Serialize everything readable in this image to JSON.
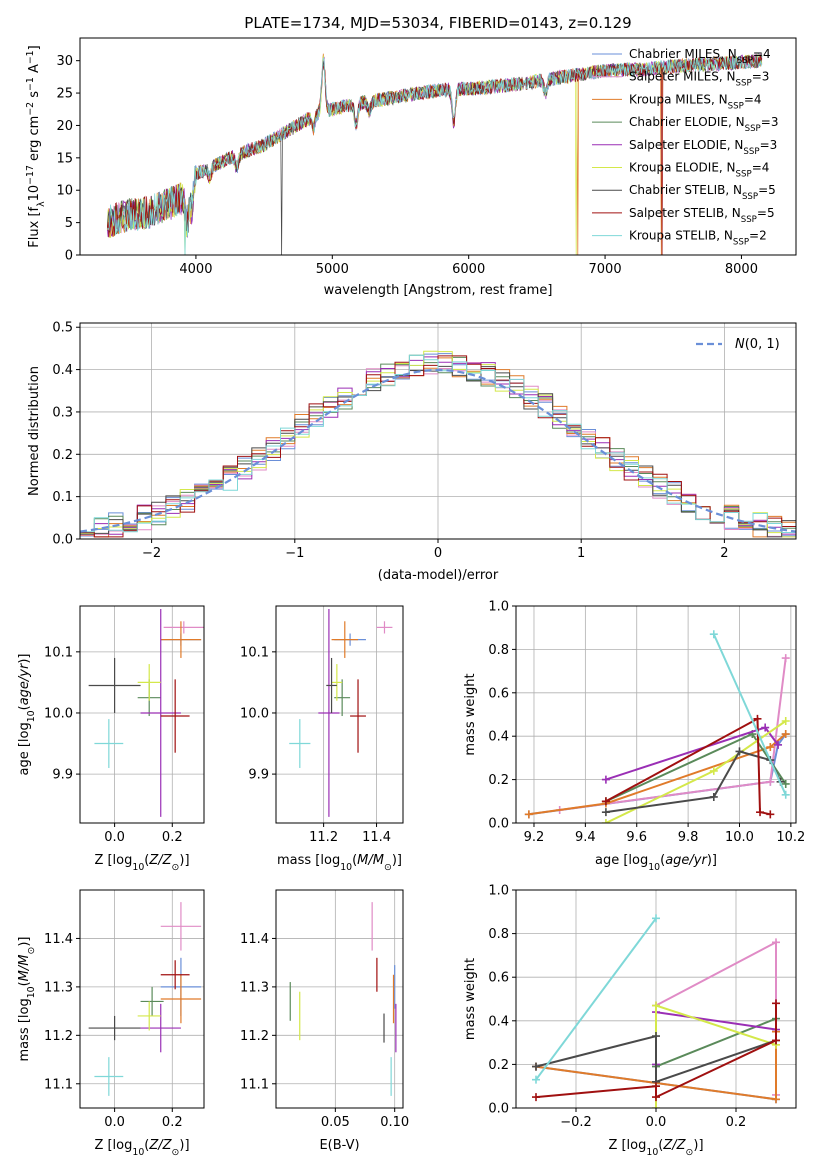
{
  "figure_title": "PLATE=1734, MJD=53034, FIBERID=0143, z=0.129",
  "colors": {
    "chabrier_miles": "#6a8fd8",
    "salpeter_miles": "#e08bc6",
    "kroupa_miles": "#e07b2a",
    "chabrier_elodie": "#5a8a5a",
    "salpeter_elodie": "#9a2fb5",
    "kroupa_elodie": "#d4e84a",
    "chabrier_stelib": "#4a4a4a",
    "salpeter_stelib": "#a01010",
    "kroupa_stelib": "#7fd8d8",
    "normal_curve": "#6a8fd8",
    "grid": "#b0b0b0"
  },
  "chart_data": [
    {
      "id": "spectrum",
      "type": "line",
      "title": "PLATE=1734, MJD=53034, FIBERID=0143, z=0.129",
      "xlabel": "wavelength [Angstrom, rest frame]",
      "ylabel": "Flux [f_λ10^-17 erg cm^-2 s^-1 A^-1]",
      "xlim": [
        3150,
        8400
      ],
      "ylim": [
        0,
        33.5
      ],
      "xticks": [
        4000,
        5000,
        6000,
        7000,
        8000
      ],
      "yticks": [
        0,
        5,
        10,
        15,
        20,
        25,
        30
      ],
      "grid": false,
      "legend_position": "top-right",
      "legend": [
        {
          "label": "Chabrier MILES, N",
          "sub": "SSP",
          "eq": "=4",
          "color_key": "chabrier_miles"
        },
        {
          "label": "Salpeter MILES, N",
          "sub": "SSP",
          "eq": "=3",
          "color_key": "salpeter_miles"
        },
        {
          "label": "Kroupa MILES, N",
          "sub": "SSP",
          "eq": "=4",
          "color_key": "kroupa_miles"
        },
        {
          "label": "Chabrier ELODIE, N",
          "sub": "SSP",
          "eq": "=3",
          "color_key": "chabrier_elodie"
        },
        {
          "label": "Salpeter ELODIE, N",
          "sub": "SSP",
          "eq": "=3",
          "color_key": "salpeter_elodie"
        },
        {
          "label": "Kroupa ELODIE, N",
          "sub": "SSP",
          "eq": "=4",
          "color_key": "kroupa_elodie"
        },
        {
          "label": "Chabrier STELIB, N",
          "sub": "SSP",
          "eq": "=5",
          "color_key": "chabrier_stelib"
        },
        {
          "label": "Salpeter STELIB, N",
          "sub": "SSP",
          "eq": "=5",
          "color_key": "salpeter_stelib"
        },
        {
          "label": "Kroupa STELIB, N",
          "sub": "SSP",
          "eq": "=2",
          "color_key": "kroupa_stelib"
        }
      ],
      "continuum": {
        "x": [
          3350,
          3500,
          3650,
          3800,
          3950,
          4000,
          4100,
          4300,
          4500,
          4700,
          4900,
          5100,
          5300,
          5500,
          5800,
          6100,
          6400,
          6700,
          7000,
          7300,
          7600,
          7900,
          8150
        ],
        "y": [
          5,
          6.2,
          6.5,
          7.8,
          9.2,
          12.5,
          13.5,
          15.5,
          17,
          19.5,
          22,
          23,
          23.8,
          24.5,
          25.5,
          25.8,
          26.5,
          27.5,
          28.5,
          28.7,
          29.3,
          29.6,
          30
        ]
      },
      "dropouts": [
        {
          "series": "kroupa_elodie",
          "x": 3920
        },
        {
          "series": "kroupa_stelib",
          "x": 3920
        },
        {
          "series": "chabrier_stelib",
          "x": 4630
        },
        {
          "series": "kroupa_elodie",
          "x": 6790
        },
        {
          "series": "kroupa_miles",
          "x": 6800
        },
        {
          "series": "kroupa_miles",
          "x": 7410
        },
        {
          "series": "salpeter_stelib",
          "x": 7420
        }
      ]
    },
    {
      "id": "residuals",
      "type": "histogram",
      "xlabel": "(data-model)/error",
      "ylabel": "Normed distribution",
      "xlim": [
        -2.5,
        2.5
      ],
      "ylim": [
        0,
        0.51
      ],
      "xticks": [
        -2,
        -1,
        0,
        1,
        2
      ],
      "yticks": [
        0.0,
        0.1,
        0.2,
        0.3,
        0.4,
        0.5
      ],
      "grid": true,
      "legend_position": "top-right",
      "normal_label": "N(0, 1)",
      "bin_width": 0.1
    },
    {
      "id": "age_vs_Z",
      "type": "scatter",
      "xlabel": "Z [log10(Z/Z⊙)]",
      "ylabel": "age  [log10(age/yr)]",
      "xlim": [
        -0.12,
        0.31
      ],
      "ylim": [
        9.82,
        10.175
      ],
      "xticks": [
        0.0,
        0.2
      ],
      "yticks": [
        9.9,
        10.0,
        10.1
      ],
      "points": [
        {
          "c": "chabrier_miles",
          "x": 0.23,
          "y": 10.12,
          "xe": 0.07,
          "ye": 0.01
        },
        {
          "c": "salpeter_miles",
          "x": 0.24,
          "y": 10.14,
          "xe": 0.07,
          "ye": 0.01
        },
        {
          "c": "kroupa_miles",
          "x": 0.23,
          "y": 10.12,
          "xe": 0.07,
          "ye": 0.03
        },
        {
          "c": "chabrier_elodie",
          "x": 0.12,
          "y": 10.025,
          "xe": 0.04,
          "ye": 0.03
        },
        {
          "c": "salpeter_elodie",
          "x": 0.16,
          "y": 10.0,
          "xe": 0.07,
          "ye": 0.17
        },
        {
          "c": "kroupa_elodie",
          "x": 0.12,
          "y": 10.05,
          "xe": 0.04,
          "ye": 0.03
        },
        {
          "c": "chabrier_stelib",
          "x": 0.0,
          "y": 10.045,
          "xe": 0.09,
          "ye": 0.045
        },
        {
          "c": "salpeter_stelib",
          "x": 0.21,
          "y": 9.995,
          "xe": 0.05,
          "ye": 0.06
        },
        {
          "c": "kroupa_stelib",
          "x": -0.02,
          "y": 9.95,
          "xe": 0.05,
          "ye": 0.04
        }
      ]
    },
    {
      "id": "age_vs_mass",
      "type": "scatter",
      "xlabel": "mass [log10(M/M⊙)]",
      "ylabel": "",
      "xlim": [
        11.02,
        11.5
      ],
      "ylim": [
        9.82,
        10.175
      ],
      "xticks": [
        11.2,
        11.4
      ],
      "yticks": [
        9.9,
        10.0,
        10.1
      ],
      "points": [
        {
          "c": "chabrier_miles",
          "x": 11.3,
          "y": 10.12,
          "xe": 0.06,
          "ye": 0.01
        },
        {
          "c": "salpeter_miles",
          "x": 11.43,
          "y": 10.14,
          "xe": 0.03,
          "ye": 0.01
        },
        {
          "c": "kroupa_miles",
          "x": 11.28,
          "y": 10.12,
          "xe": 0.05,
          "ye": 0.03
        },
        {
          "c": "chabrier_elodie",
          "x": 11.27,
          "y": 10.025,
          "xe": 0.03,
          "ye": 0.03
        },
        {
          "c": "salpeter_elodie",
          "x": 11.22,
          "y": 10.0,
          "xe": 0.04,
          "ye": 0.17
        },
        {
          "c": "kroupa_elodie",
          "x": 11.25,
          "y": 10.05,
          "xe": 0.02,
          "ye": 0.03
        },
        {
          "c": "chabrier_stelib",
          "x": 11.23,
          "y": 10.045,
          "xe": 0.02,
          "ye": 0.045
        },
        {
          "c": "salpeter_stelib",
          "x": 11.33,
          "y": 9.995,
          "xe": 0.03,
          "ye": 0.06
        },
        {
          "c": "kroupa_stelib",
          "x": 11.11,
          "y": 9.95,
          "xe": 0.04,
          "ye": 0.04
        }
      ]
    },
    {
      "id": "weight_vs_age",
      "type": "line",
      "xlabel": "age  [log10(age/yr)]",
      "ylabel": "mass weight",
      "xlim": [
        9.13,
        10.22
      ],
      "ylim": [
        0,
        1.0
      ],
      "xticks": [
        9.2,
        9.4,
        9.6,
        9.8,
        10.0,
        10.2
      ],
      "yticks": [
        0.0,
        0.2,
        0.4,
        0.6,
        0.8,
        1.0
      ],
      "series": [
        {
          "c": "chabrier_miles",
          "x": [
            9.18,
            10.12,
            10.15,
            10.18
          ],
          "y": [
            0.04,
            0.19,
            0.36,
            0.41
          ]
        },
        {
          "c": "salpeter_miles",
          "x": [
            9.3,
            10.12,
            10.18
          ],
          "y": [
            0.06,
            0.19,
            0.76
          ]
        },
        {
          "c": "kroupa_miles",
          "x": [
            9.18,
            9.48,
            10.12,
            10.18
          ],
          "y": [
            0.04,
            0.09,
            0.35,
            0.41
          ]
        },
        {
          "c": "chabrier_elodie",
          "x": [
            9.48,
            10.05,
            10.18
          ],
          "y": [
            0.1,
            0.41,
            0.18
          ]
        },
        {
          "c": "salpeter_elodie",
          "x": [
            9.48,
            10.1,
            10.15
          ],
          "y": [
            0.2,
            0.44,
            0.36
          ]
        },
        {
          "c": "kroupa_elodie",
          "x": [
            9.48,
            9.9,
            10.18
          ],
          "y": [
            0.0,
            0.24,
            0.47
          ]
        },
        {
          "c": "chabrier_stelib",
          "x": [
            9.48,
            9.9,
            10.0,
            10.12,
            10.16
          ],
          "y": [
            0.05,
            0.12,
            0.33,
            0.29,
            0.19
          ]
        },
        {
          "c": "salpeter_stelib",
          "x": [
            9.48,
            10.07,
            10.08,
            10.12
          ],
          "y": [
            0.1,
            0.48,
            0.05,
            0.04
          ]
        },
        {
          "c": "kroupa_stelib",
          "x": [
            9.9,
            10.18
          ],
          "y": [
            0.87,
            0.13
          ]
        }
      ]
    },
    {
      "id": "mass_vs_Z",
      "type": "scatter",
      "xlabel": "Z [log10(Z/Z⊙)]",
      "ylabel": "mass [log10(M/M⊙)]",
      "xlim": [
        -0.12,
        0.31
      ],
      "ylim": [
        11.05,
        11.5
      ],
      "xticks": [
        0.0,
        0.2
      ],
      "yticks": [
        11.1,
        11.2,
        11.3,
        11.4
      ],
      "points": [
        {
          "c": "chabrier_miles",
          "x": 0.23,
          "y": 11.3,
          "xe": 0.07,
          "ye": 0.06
        },
        {
          "c": "salpeter_miles",
          "x": 0.23,
          "y": 11.425,
          "xe": 0.07,
          "ye": 0.05
        },
        {
          "c": "kroupa_miles",
          "x": 0.23,
          "y": 11.275,
          "xe": 0.07,
          "ye": 0.05
        },
        {
          "c": "chabrier_elodie",
          "x": 0.13,
          "y": 11.27,
          "xe": 0.04,
          "ye": 0.03
        },
        {
          "c": "salpeter_elodie",
          "x": 0.16,
          "y": 11.215,
          "xe": 0.07,
          "ye": 0.05
        },
        {
          "c": "kroupa_elodie",
          "x": 0.12,
          "y": 11.24,
          "xe": 0.04,
          "ye": 0.03
        },
        {
          "c": "chabrier_stelib",
          "x": 0.0,
          "y": 11.215,
          "xe": 0.09,
          "ye": 0.025
        },
        {
          "c": "salpeter_stelib",
          "x": 0.21,
          "y": 11.325,
          "xe": 0.05,
          "ye": 0.03
        },
        {
          "c": "kroupa_stelib",
          "x": -0.02,
          "y": 11.115,
          "xe": 0.05,
          "ye": 0.04
        }
      ]
    },
    {
      "id": "mass_vs_ebv",
      "type": "scatter",
      "xlabel": "E(B-V)",
      "ylabel": "",
      "xlim": [
        0.0,
        0.107
      ],
      "ylim": [
        11.05,
        11.5
      ],
      "xticks": [
        0.05,
        0.1
      ],
      "yticks": [
        11.1,
        11.2,
        11.3,
        11.4
      ],
      "points": [
        {
          "c": "chabrier_miles",
          "x": 0.1,
          "y": 11.3,
          "xe": 0,
          "ye": 0.045
        },
        {
          "c": "salpeter_miles",
          "x": 0.081,
          "y": 11.425,
          "xe": 0,
          "ye": 0.05
        },
        {
          "c": "kroupa_miles",
          "x": 0.099,
          "y": 11.275,
          "xe": 0,
          "ye": 0.05
        },
        {
          "c": "chabrier_elodie",
          "x": 0.012,
          "y": 11.27,
          "xe": 0,
          "ye": 0.04
        },
        {
          "c": "salpeter_elodie",
          "x": 0.101,
          "y": 11.215,
          "xe": 0,
          "ye": 0.05
        },
        {
          "c": "kroupa_elodie",
          "x": 0.02,
          "y": 11.24,
          "xe": 0,
          "ye": 0.05
        },
        {
          "c": "chabrier_stelib",
          "x": 0.091,
          "y": 11.215,
          "xe": 0,
          "ye": 0.03
        },
        {
          "c": "salpeter_stelib",
          "x": 0.085,
          "y": 11.325,
          "xe": 0,
          "ye": 0.035
        },
        {
          "c": "kroupa_stelib",
          "x": 0.097,
          "y": 11.115,
          "xe": 0,
          "ye": 0.04
        }
      ]
    },
    {
      "id": "weight_vs_Z",
      "type": "line",
      "xlabel": "Z [log10(Z/Z⊙)]",
      "ylabel": "mass weight",
      "xlim": [
        -0.35,
        0.35
      ],
      "ylim": [
        0,
        1.0
      ],
      "xticks": [
        -0.2,
        0.0,
        0.2
      ],
      "yticks": [
        0.0,
        0.2,
        0.4,
        0.6,
        0.8,
        1.0
      ],
      "series": [
        {
          "c": "chabrier_miles",
          "x": [
            -0.3,
            0.3,
            0.3
          ],
          "y": [
            0.19,
            0.04,
            0.41
          ]
        },
        {
          "c": "salpeter_miles",
          "x": [
            0.0,
            0.3,
            0.3
          ],
          "y": [
            0.47,
            0.76,
            0.06
          ]
        },
        {
          "c": "kroupa_miles",
          "x": [
            -0.3,
            0.3,
            0.3
          ],
          "y": [
            0.19,
            0.04,
            0.35
          ]
        },
        {
          "c": "chabrier_elodie",
          "x": [
            0.0,
            0.0,
            0.3
          ],
          "y": [
            0.1,
            0.19,
            0.41
          ]
        },
        {
          "c": "salpeter_elodie",
          "x": [
            0.0,
            0.0,
            0.3
          ],
          "y": [
            0.2,
            0.44,
            0.36
          ]
        },
        {
          "c": "kroupa_elodie",
          "x": [
            0.0,
            0.0,
            0.3
          ],
          "y": [
            0.0,
            0.47,
            0.29
          ]
        },
        {
          "c": "chabrier_stelib",
          "x": [
            -0.3,
            0.0,
            0.0,
            0.3
          ],
          "y": [
            0.19,
            0.33,
            0.12,
            0.31
          ]
        },
        {
          "c": "salpeter_stelib",
          "x": [
            -0.3,
            0.0,
            0.0,
            0.3,
            0.3
          ],
          "y": [
            0.05,
            0.1,
            0.05,
            0.31,
            0.48
          ]
        },
        {
          "c": "kroupa_stelib",
          "x": [
            -0.3,
            0.0
          ],
          "y": [
            0.13,
            0.87
          ]
        }
      ]
    }
  ]
}
